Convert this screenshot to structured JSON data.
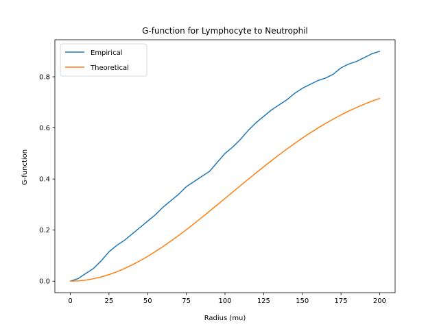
{
  "chart_data": {
    "type": "line",
    "title": "G-function for Lymphocyte to Neutrophil",
    "xlabel": "Radius (mu)",
    "ylabel": "G-function",
    "xlim": [
      -10,
      210
    ],
    "ylim": [
      -0.045,
      0.945
    ],
    "xticks": [
      0,
      25,
      50,
      75,
      100,
      125,
      150,
      175,
      200
    ],
    "yticks": [
      0.0,
      0.2,
      0.4,
      0.6,
      0.8
    ],
    "xtick_labels": [
      "0",
      "25",
      "50",
      "75",
      "100",
      "125",
      "150",
      "175",
      "200"
    ],
    "ytick_labels": [
      "0.0",
      "0.2",
      "0.4",
      "0.6",
      "0.8"
    ],
    "grid": false,
    "legend_position": "top-left",
    "series": [
      {
        "name": "Empirical",
        "color": "#1f77b4",
        "x": [
          0,
          5,
          10,
          15,
          20,
          25,
          30,
          35,
          40,
          45,
          50,
          55,
          60,
          65,
          70,
          75,
          80,
          85,
          90,
          95,
          100,
          105,
          110,
          115,
          120,
          125,
          130,
          135,
          140,
          145,
          150,
          155,
          160,
          165,
          170,
          175,
          180,
          185,
          190,
          195,
          200
        ],
        "y": [
          0.0,
          0.01,
          0.03,
          0.05,
          0.08,
          0.115,
          0.14,
          0.16,
          0.185,
          0.21,
          0.235,
          0.26,
          0.29,
          0.315,
          0.34,
          0.37,
          0.39,
          0.41,
          0.43,
          0.465,
          0.5,
          0.525,
          0.555,
          0.59,
          0.62,
          0.645,
          0.67,
          0.69,
          0.71,
          0.735,
          0.755,
          0.77,
          0.785,
          0.795,
          0.81,
          0.835,
          0.85,
          0.86,
          0.875,
          0.89,
          0.9
        ]
      },
      {
        "name": "Theoretical",
        "color": "#ff7f0e",
        "x": [
          0,
          5,
          10,
          15,
          20,
          25,
          30,
          35,
          40,
          45,
          50,
          55,
          60,
          65,
          70,
          75,
          80,
          85,
          90,
          95,
          100,
          105,
          110,
          115,
          120,
          125,
          130,
          135,
          140,
          145,
          150,
          155,
          160,
          165,
          170,
          175,
          180,
          185,
          190,
          195,
          200
        ],
        "y": [
          0.0,
          0.0011,
          0.0043,
          0.0095,
          0.0167,
          0.0258,
          0.0367,
          0.0494,
          0.0638,
          0.0798,
          0.0972,
          0.1159,
          0.1358,
          0.1568,
          0.1788,
          0.2016,
          0.2252,
          0.2493,
          0.2739,
          0.2988,
          0.3238,
          0.3489,
          0.374,
          0.3989,
          0.4235,
          0.4477,
          0.4715,
          0.4947,
          0.5172,
          0.539,
          0.5599,
          0.58,
          0.5991,
          0.6173,
          0.6345,
          0.6506,
          0.6657,
          0.6797,
          0.6927,
          0.7045,
          0.7154
        ]
      }
    ]
  }
}
